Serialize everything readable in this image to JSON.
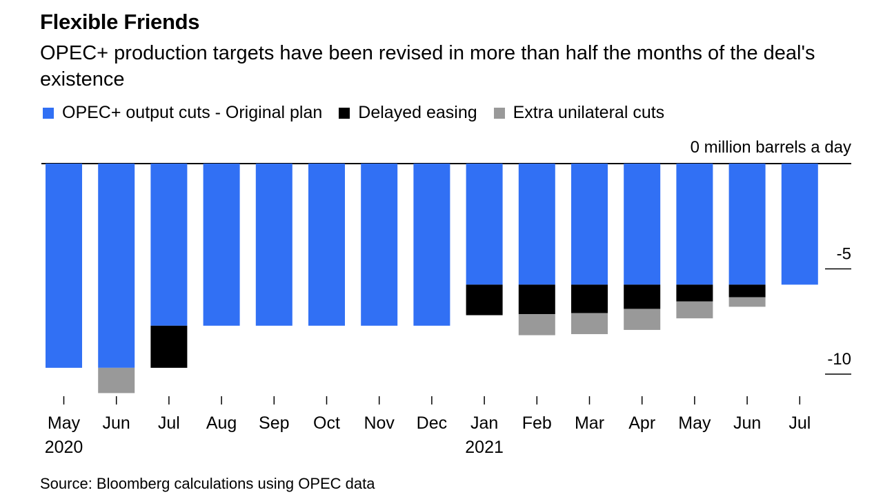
{
  "chart_data": {
    "type": "bar",
    "stacked": true,
    "title": "Flexible Friends",
    "subtitle": "OPEC+ production targets have been revised in more than half the months of the deal's existence",
    "source": "Source: Bloomberg calculations using OPEC data",
    "ylabel": "million barrels a day",
    "ylim": [
      -11,
      0
    ],
    "yticks": [
      {
        "value": 0,
        "label": "0 million barrels a day"
      },
      {
        "value": -5,
        "label": "-5"
      },
      {
        "value": -10,
        "label": "-10"
      }
    ],
    "categories": [
      "May",
      "Jun",
      "Jul",
      "Aug",
      "Sep",
      "Oct",
      "Nov",
      "Dec",
      "Jan",
      "Feb",
      "Mar",
      "Apr",
      "May",
      "Jun",
      "Jul"
    ],
    "year_labels": [
      {
        "index": 0,
        "label": "2020"
      },
      {
        "index": 8,
        "label": "2021"
      }
    ],
    "series": [
      {
        "name": "OPEC+ output cuts - Original plan",
        "color": "#3170f4",
        "values": [
          -9.7,
          -9.7,
          -7.7,
          -7.7,
          -7.7,
          -7.7,
          -7.7,
          -7.7,
          -5.75,
          -5.75,
          -5.75,
          -5.75,
          -5.75,
          -5.75,
          -5.75
        ]
      },
      {
        "name": "Delayed easing",
        "color": "#000000",
        "values": [
          0,
          0,
          -2.0,
          0,
          0,
          0,
          0,
          0,
          -1.45,
          -1.4,
          -1.35,
          -1.15,
          -0.8,
          -0.6,
          0
        ]
      },
      {
        "name": "Extra unilateral cuts",
        "color": "#999999",
        "values": [
          0,
          -1.2,
          0,
          0,
          0,
          0,
          0,
          0,
          0,
          -1.0,
          -1.0,
          -1.0,
          -0.8,
          -0.45,
          0
        ]
      }
    ],
    "grid": false,
    "legend_position": "top-left"
  }
}
